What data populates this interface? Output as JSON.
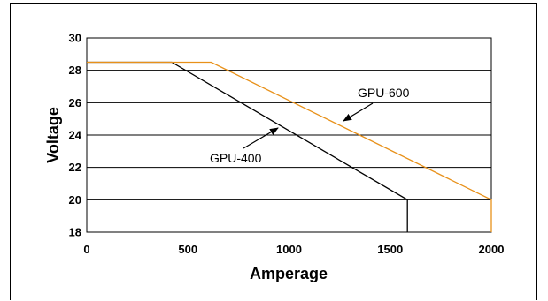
{
  "chart_data": {
    "type": "line",
    "title": "",
    "xlabel": "Amperage",
    "ylabel": "Voltage",
    "xlim": [
      0,
      2000
    ],
    "ylim": [
      18,
      30
    ],
    "x_ticks": [
      "0",
      "500",
      "1000",
      "1500",
      "2000"
    ],
    "y_ticks": [
      "18",
      "20",
      "22",
      "24",
      "26",
      "28",
      "30"
    ],
    "grid": "horizontal",
    "series": [
      {
        "name": "GPU-400",
        "color": "#000000",
        "points": [
          [
            0,
            28.5
          ],
          [
            420,
            28.5
          ],
          [
            1585,
            20
          ],
          [
            1585,
            18
          ]
        ]
      },
      {
        "name": "GPU-600",
        "color": "#E8911A",
        "points": [
          [
            0,
            28.5
          ],
          [
            615,
            28.5
          ],
          [
            2000,
            20
          ],
          [
            2000,
            18
          ]
        ]
      }
    ],
    "annotations": [
      {
        "text": "GPU-600",
        "series": "GPU-600"
      },
      {
        "text": "GPU-400",
        "series": "GPU-400"
      }
    ]
  }
}
